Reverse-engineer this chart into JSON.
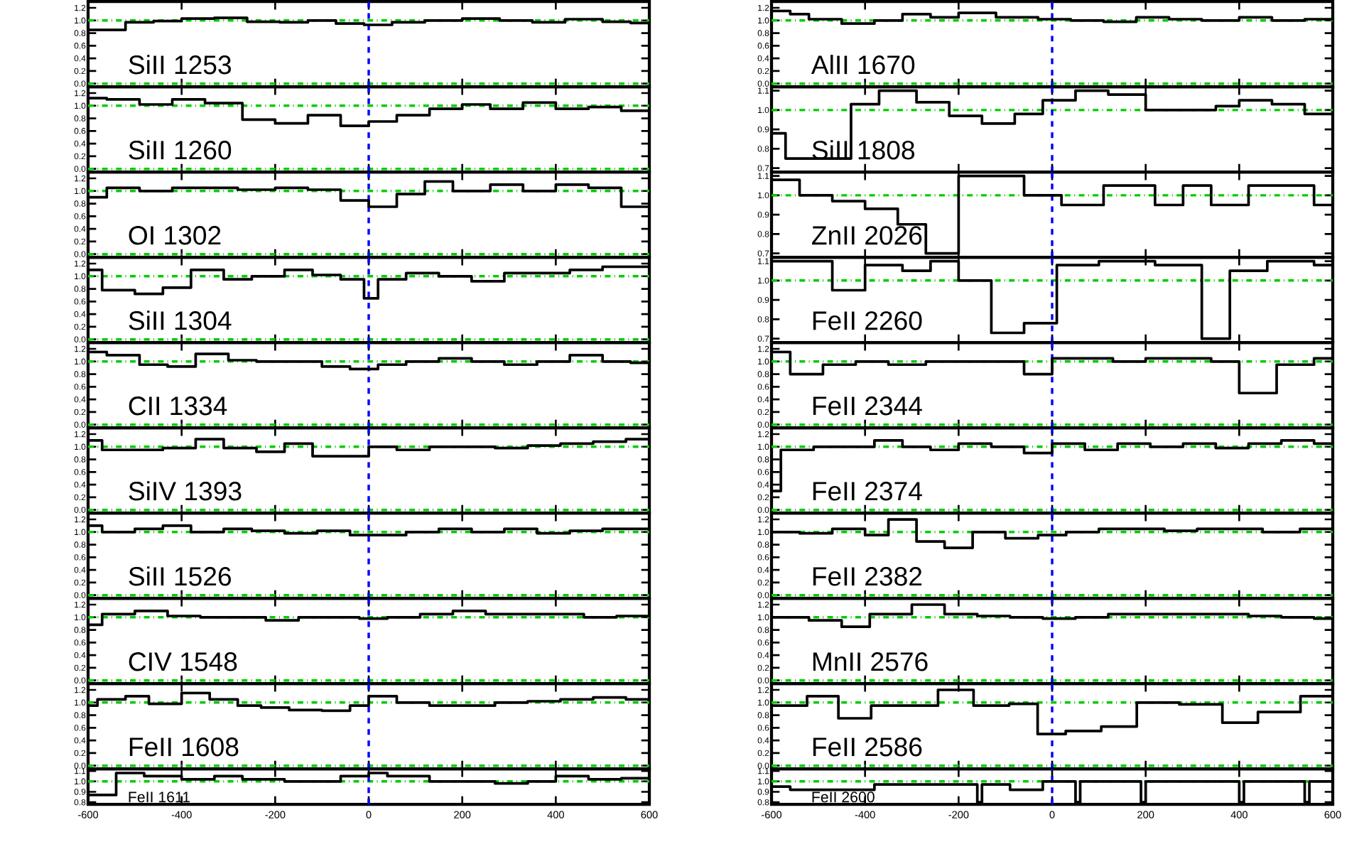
{
  "chart_data": [
    {
      "type": "step",
      "title": "SiII 1253",
      "color": "#000000",
      "x": [
        -600,
        -520,
        -460,
        -400,
        -330,
        -260,
        -190,
        -130,
        -70,
        -10,
        50,
        120,
        200,
        280,
        350,
        420,
        500,
        560,
        600
      ],
      "values": [
        0.85,
        0.97,
        0.99,
        1.03,
        1.04,
        0.98,
        0.97,
        1.0,
        0.95,
        0.93,
        0.97,
        1.0,
        1.03,
        1.0,
        0.97,
        1.02,
        0.98,
        0.96,
        0.96
      ],
      "xlim": [
        -600,
        600
      ],
      "ylim": [
        -0.05,
        1.3
      ],
      "yticks": [
        {
          "value": 0,
          "label": "0.0"
        },
        {
          "value": 0.2,
          "label": "0.2"
        },
        {
          "value": 0.4,
          "label": "0.4"
        },
        {
          "value": 0.6,
          "label": "0.6"
        },
        {
          "value": 0.8,
          "label": "0.8"
        },
        {
          "value": 1.0,
          "label": "1.0"
        },
        {
          "value": 1.2,
          "label": "1.2"
        }
      ],
      "xticks": [
        -600,
        -400,
        -200,
        0,
        200,
        400,
        600
      ],
      "tick_labels": "y",
      "ref_lines": [
        {
          "axis": "y",
          "value": 1,
          "color": "#00cc00",
          "line_style": "dashdot"
        },
        {
          "axis": "y",
          "value": 0,
          "color": "#00cc00",
          "line_style": "dashdot"
        },
        {
          "axis": "x",
          "value": 0,
          "color": "#0000ff",
          "line_style": "dashed"
        }
      ]
    },
    {
      "type": "step",
      "title": "SiII 1260",
      "color": "#000000",
      "x": [
        -600,
        -560,
        -490,
        -420,
        -350,
        -270,
        -200,
        -130,
        -60,
        0,
        60,
        130,
        200,
        260,
        330,
        400,
        470,
        540,
        600
      ],
      "values": [
        1.12,
        1.1,
        1.02,
        1.1,
        1.04,
        0.78,
        0.72,
        0.85,
        0.68,
        0.75,
        0.85,
        0.95,
        1.02,
        0.95,
        1.05,
        0.95,
        0.98,
        0.92,
        0.92
      ],
      "xlim": [
        -600,
        600
      ],
      "ylim": [
        -0.05,
        1.3
      ],
      "yticks": [
        {
          "value": 0,
          "label": "0.0"
        },
        {
          "value": 0.2,
          "label": "0.2"
        },
        {
          "value": 0.4,
          "label": "0.4"
        },
        {
          "value": 0.6,
          "label": "0.6"
        },
        {
          "value": 0.8,
          "label": "0.8"
        },
        {
          "value": 1.0,
          "label": "1.0"
        },
        {
          "value": 1.2,
          "label": "1.2"
        }
      ],
      "xticks": [
        -600,
        -400,
        -200,
        0,
        200,
        400,
        600
      ],
      "tick_labels": "y",
      "ref_lines": [
        {
          "axis": "y",
          "value": 1,
          "color": "#00cc00",
          "line_style": "dashdot"
        },
        {
          "axis": "y",
          "value": 0,
          "color": "#00cc00",
          "line_style": "dashdot"
        },
        {
          "axis": "x",
          "value": 0,
          "color": "#0000ff",
          "line_style": "dashed"
        }
      ]
    },
    {
      "type": "step",
      "title": "OI 1302",
      "color": "#000000",
      "x": [
        -600,
        -560,
        -490,
        -420,
        -350,
        -280,
        -200,
        -130,
        -60,
        0,
        60,
        120,
        180,
        260,
        330,
        400,
        470,
        540,
        600
      ],
      "values": [
        0.9,
        1.05,
        1.0,
        1.05,
        1.05,
        1.02,
        1.05,
        1.02,
        0.85,
        0.75,
        0.95,
        1.15,
        1.0,
        1.1,
        1.0,
        1.1,
        1.05,
        0.75,
        0.75
      ],
      "xlim": [
        -600,
        600
      ],
      "ylim": [
        -0.05,
        1.3
      ],
      "yticks": [
        {
          "value": 0,
          "label": "0.0"
        },
        {
          "value": 0.2,
          "label": "0.2"
        },
        {
          "value": 0.4,
          "label": "0.4"
        },
        {
          "value": 0.6,
          "label": "0.6"
        },
        {
          "value": 0.8,
          "label": "0.8"
        },
        {
          "value": 1.0,
          "label": "1.0"
        },
        {
          "value": 1.2,
          "label": "1.2"
        }
      ],
      "xticks": [
        -600,
        -400,
        -200,
        0,
        200,
        400,
        600
      ],
      "tick_labels": "y",
      "ref_lines": [
        {
          "axis": "y",
          "value": 1,
          "color": "#00cc00",
          "line_style": "dashdot"
        },
        {
          "axis": "y",
          "value": 0,
          "color": "#00cc00",
          "line_style": "dashdot"
        },
        {
          "axis": "x",
          "value": 0,
          "color": "#0000ff",
          "line_style": "dashed"
        }
      ]
    },
    {
      "type": "step",
      "title": "SiII 1304",
      "color": "#000000",
      "x": [
        -600,
        -570,
        -500,
        -440,
        -380,
        -310,
        -250,
        -180,
        -120,
        -60,
        -10,
        20,
        80,
        150,
        220,
        290,
        360,
        430,
        500,
        560,
        600
      ],
      "values": [
        1.1,
        0.78,
        0.72,
        0.82,
        1.1,
        0.95,
        1.0,
        1.1,
        1.02,
        0.95,
        0.65,
        0.95,
        1.05,
        1.0,
        0.92,
        1.05,
        1.05,
        1.1,
        1.15,
        1.15,
        1.15
      ],
      "xlim": [
        -600,
        600
      ],
      "ylim": [
        -0.05,
        1.3
      ],
      "yticks": [
        {
          "value": 0,
          "label": "0.0"
        },
        {
          "value": 0.2,
          "label": "0.2"
        },
        {
          "value": 0.4,
          "label": "0.4"
        },
        {
          "value": 0.6,
          "label": "0.6"
        },
        {
          "value": 0.8,
          "label": "0.8"
        },
        {
          "value": 1.0,
          "label": "1.0"
        },
        {
          "value": 1.2,
          "label": "1.2"
        }
      ],
      "xticks": [
        -600,
        -400,
        -200,
        0,
        200,
        400,
        600
      ],
      "tick_labels": "y",
      "ref_lines": [
        {
          "axis": "y",
          "value": 1,
          "color": "#00cc00",
          "line_style": "dashdot"
        },
        {
          "axis": "y",
          "value": 0,
          "color": "#00cc00",
          "line_style": "dashdot"
        },
        {
          "axis": "x",
          "value": 0,
          "color": "#0000ff",
          "line_style": "dashed"
        }
      ]
    },
    {
      "type": "step",
      "title": "CII 1334",
      "color": "#000000",
      "x": [
        -600,
        -560,
        -490,
        -430,
        -370,
        -300,
        -240,
        -160,
        -100,
        -40,
        20,
        80,
        150,
        220,
        290,
        360,
        430,
        500,
        560,
        600
      ],
      "values": [
        1.15,
        1.1,
        0.95,
        0.92,
        1.12,
        1.02,
        1.0,
        1.0,
        0.92,
        0.88,
        0.95,
        1.0,
        1.05,
        1.0,
        0.95,
        1.0,
        1.1,
        1.0,
        0.98,
        0.98
      ],
      "xlim": [
        -600,
        600
      ],
      "ylim": [
        -0.05,
        1.3
      ],
      "yticks": [
        {
          "value": 0,
          "label": "0.0"
        },
        {
          "value": 0.2,
          "label": "0.2"
        },
        {
          "value": 0.4,
          "label": "0.4"
        },
        {
          "value": 0.6,
          "label": "0.6"
        },
        {
          "value": 0.8,
          "label": "0.8"
        },
        {
          "value": 1.0,
          "label": "1.0"
        },
        {
          "value": 1.2,
          "label": "1.2"
        }
      ],
      "xticks": [
        -600,
        -400,
        -200,
        0,
        200,
        400,
        600
      ],
      "tick_labels": "y",
      "ref_lines": [
        {
          "axis": "y",
          "value": 1,
          "color": "#00cc00",
          "line_style": "dashdot"
        },
        {
          "axis": "y",
          "value": 0,
          "color": "#00cc00",
          "line_style": "dashdot"
        },
        {
          "axis": "x",
          "value": 0,
          "color": "#0000ff",
          "line_style": "dashed"
        }
      ]
    },
    {
      "type": "step",
      "title": "SiIV 1393",
      "color": "#000000",
      "x": [
        -600,
        -570,
        -500,
        -440,
        -370,
        -310,
        -240,
        -180,
        -120,
        -50,
        0,
        60,
        130,
        200,
        270,
        340,
        410,
        480,
        550,
        600
      ],
      "values": [
        1.1,
        0.95,
        0.95,
        0.98,
        1.12,
        0.98,
        0.92,
        1.05,
        0.85,
        0.85,
        1.0,
        0.95,
        1.0,
        1.0,
        0.98,
        1.02,
        1.05,
        1.08,
        1.12,
        1.12
      ],
      "xlim": [
        -600,
        600
      ],
      "ylim": [
        -0.05,
        1.3
      ],
      "yticks": [
        {
          "value": 0,
          "label": "0.0"
        },
        {
          "value": 0.2,
          "label": "0.2"
        },
        {
          "value": 0.4,
          "label": "0.4"
        },
        {
          "value": 0.6,
          "label": "0.6"
        },
        {
          "value": 0.8,
          "label": "0.8"
        },
        {
          "value": 1.0,
          "label": "1.0"
        },
        {
          "value": 1.2,
          "label": "1.2"
        }
      ],
      "xticks": [
        -600,
        -400,
        -200,
        0,
        200,
        400,
        600
      ],
      "tick_labels": "y",
      "ref_lines": [
        {
          "axis": "y",
          "value": 1,
          "color": "#00cc00",
          "line_style": "dashdot"
        },
        {
          "axis": "y",
          "value": 0,
          "color": "#00cc00",
          "line_style": "dashdot"
        },
        {
          "axis": "x",
          "value": 0,
          "color": "#0000ff",
          "line_style": "dashed"
        }
      ]
    },
    {
      "type": "step",
      "title": "SiII 1526",
      "color": "#000000",
      "x": [
        -600,
        -570,
        -500,
        -440,
        -380,
        -310,
        -250,
        -180,
        -110,
        -40,
        20,
        80,
        150,
        220,
        290,
        360,
        430,
        500,
        560,
        600
      ],
      "values": [
        1.1,
        1.0,
        1.05,
        1.1,
        1.0,
        1.05,
        1.02,
        0.98,
        1.02,
        0.95,
        0.95,
        1.0,
        1.05,
        1.0,
        1.05,
        0.98,
        1.02,
        1.05,
        1.05,
        1.05
      ],
      "xlim": [
        -600,
        600
      ],
      "ylim": [
        -0.05,
        1.3
      ],
      "yticks": [
        {
          "value": 0,
          "label": "0.0"
        },
        {
          "value": 0.2,
          "label": "0.2"
        },
        {
          "value": 0.4,
          "label": "0.4"
        },
        {
          "value": 0.6,
          "label": "0.6"
        },
        {
          "value": 0.8,
          "label": "0.8"
        },
        {
          "value": 1.0,
          "label": "1.0"
        },
        {
          "value": 1.2,
          "label": "1.2"
        }
      ],
      "xticks": [
        -600,
        -400,
        -200,
        0,
        200,
        400,
        600
      ],
      "tick_labels": "y",
      "ref_lines": [
        {
          "axis": "y",
          "value": 1,
          "color": "#00cc00",
          "line_style": "dashdot"
        },
        {
          "axis": "y",
          "value": 0,
          "color": "#00cc00",
          "line_style": "dashdot"
        },
        {
          "axis": "x",
          "value": 0,
          "color": "#0000ff",
          "line_style": "dashed"
        }
      ]
    },
    {
      "type": "step",
      "title": "CIV 1548",
      "color": "#000000",
      "x": [
        -600,
        -570,
        -500,
        -430,
        -360,
        -290,
        -220,
        -150,
        -80,
        -20,
        40,
        110,
        180,
        250,
        320,
        390,
        460,
        530,
        600
      ],
      "values": [
        0.88,
        1.05,
        1.1,
        1.02,
        1.0,
        1.0,
        0.95,
        1.0,
        1.0,
        0.98,
        1.0,
        1.05,
        1.1,
        1.05,
        1.05,
        1.05,
        1.0,
        1.02,
        1.02
      ],
      "xlim": [
        -600,
        600
      ],
      "ylim": [
        -0.05,
        1.3
      ],
      "yticks": [
        {
          "value": 0,
          "label": "0.0"
        },
        {
          "value": 0.2,
          "label": "0.2"
        },
        {
          "value": 0.4,
          "label": "0.4"
        },
        {
          "value": 0.6,
          "label": "0.6"
        },
        {
          "value": 0.8,
          "label": "0.8"
        },
        {
          "value": 1.0,
          "label": "1.0"
        },
        {
          "value": 1.2,
          "label": "1.2"
        }
      ],
      "xticks": [
        -600,
        -400,
        -200,
        0,
        200,
        400,
        600
      ],
      "tick_labels": "y",
      "ref_lines": [
        {
          "axis": "y",
          "value": 1,
          "color": "#00cc00",
          "line_style": "dashdot"
        },
        {
          "axis": "y",
          "value": 0,
          "color": "#00cc00",
          "line_style": "dashdot"
        },
        {
          "axis": "x",
          "value": 0,
          "color": "#0000ff",
          "line_style": "dashed"
        }
      ]
    },
    {
      "type": "step",
      "title": "FeII 1608",
      "color": "#000000",
      "x": [
        -600,
        -580,
        -520,
        -470,
        -400,
        -340,
        -280,
        -230,
        -170,
        -100,
        -40,
        0,
        60,
        130,
        200,
        270,
        340,
        410,
        480,
        550,
        600
      ],
      "values": [
        0.95,
        1.05,
        1.1,
        0.98,
        1.15,
        1.05,
        0.95,
        0.92,
        0.88,
        0.87,
        0.95,
        1.1,
        1.0,
        0.95,
        0.95,
        1.0,
        1.02,
        1.05,
        1.08,
        1.05,
        1.05
      ],
      "xlim": [
        -600,
        600
      ],
      "ylim": [
        -0.05,
        1.3
      ],
      "yticks": [
        {
          "value": 0,
          "label": "0.0"
        },
        {
          "value": 0.2,
          "label": "0.2"
        },
        {
          "value": 0.4,
          "label": "0.4"
        },
        {
          "value": 0.6,
          "label": "0.6"
        },
        {
          "value": 0.8,
          "label": "0.8"
        },
        {
          "value": 1.0,
          "label": "1.0"
        },
        {
          "value": 1.2,
          "label": "1.2"
        }
      ],
      "xticks": [
        -600,
        -400,
        -200,
        0,
        200,
        400,
        600
      ],
      "tick_labels": "y",
      "ref_lines": [
        {
          "axis": "y",
          "value": 1,
          "color": "#00cc00",
          "line_style": "dashdot"
        },
        {
          "axis": "y",
          "value": 0,
          "color": "#00cc00",
          "line_style": "dashdot"
        },
        {
          "axis": "x",
          "value": 0,
          "color": "#0000ff",
          "line_style": "dashed"
        }
      ]
    },
    {
      "type": "step",
      "title": "FeII 1611",
      "color": "#000000",
      "x": [
        -600,
        -540,
        -480,
        -400,
        -330,
        -270,
        -180,
        -60,
        0,
        40,
        130,
        200,
        270,
        340,
        400,
        470,
        540,
        600
      ],
      "values": [
        0.87,
        1.08,
        1.05,
        1.02,
        1.05,
        1.02,
        1.0,
        1.05,
        1.08,
        1.05,
        1.0,
        1.0,
        0.98,
        1.0,
        1.05,
        1.02,
        1.03,
        1.03
      ],
      "xlim": [
        -600,
        600
      ],
      "ylim": [
        0.78,
        1.12
      ],
      "yticks": [
        {
          "value": 0.8,
          "label": "0.8"
        },
        {
          "value": 0.9,
          "label": "0.9"
        },
        {
          "value": 1.0,
          "label": "1.0"
        },
        {
          "value": 1.1,
          "label": "1.1"
        }
      ],
      "xticks": [
        -600,
        -400,
        -200,
        0,
        200,
        400,
        600
      ],
      "ref_lines": [
        {
          "axis": "y",
          "value": 1,
          "color": "#00cc00",
          "line_style": "dashdot"
        },
        {
          "axis": "x",
          "value": 0,
          "color": "#0000ff",
          "line_style": "dashed"
        }
      ]
    },
    {
      "type": "step",
      "title": "AlII 1670",
      "color": "#000000",
      "x": [
        -600,
        -560,
        -520,
        -450,
        -380,
        -320,
        -260,
        -200,
        -120,
        -30,
        40,
        110,
        180,
        250,
        320,
        400,
        470,
        540,
        600
      ],
      "values": [
        1.15,
        1.1,
        1.02,
        0.95,
        1.0,
        1.1,
        1.05,
        1.12,
        1.05,
        1.02,
        1.0,
        0.98,
        1.05,
        1.02,
        1.0,
        1.05,
        1.0,
        1.02,
        1.02
      ],
      "xlim": [
        -600,
        600
      ],
      "ylim": [
        -0.05,
        1.3
      ],
      "yticks": [
        {
          "value": 0,
          "label": "0.0"
        },
        {
          "value": 0.2,
          "label": "0.2"
        },
        {
          "value": 0.4,
          "label": "0.4"
        },
        {
          "value": 0.6,
          "label": "0.6"
        },
        {
          "value": 0.8,
          "label": "0.8"
        },
        {
          "value": 1.0,
          "label": "1.0"
        },
        {
          "value": 1.2,
          "label": "1.2"
        }
      ],
      "xticks": [
        -600,
        -400,
        -200,
        0,
        200,
        400,
        600
      ],
      "tick_labels": "y",
      "ref_lines": [
        {
          "axis": "y",
          "value": 1,
          "color": "#00cc00",
          "line_style": "dashdot"
        },
        {
          "axis": "y",
          "value": 0,
          "color": "#00cc00",
          "line_style": "dashdot"
        },
        {
          "axis": "x",
          "value": 0,
          "color": "#0000ff",
          "line_style": "dashed"
        }
      ]
    },
    {
      "type": "step",
      "title": "SiII 1808",
      "color": "#000000",
      "x": [
        -600,
        -570,
        -500,
        -430,
        -370,
        -290,
        -220,
        -150,
        -80,
        -20,
        50,
        120,
        200,
        280,
        350,
        400,
        470,
        540,
        600
      ],
      "values": [
        0.88,
        0.75,
        0.75,
        1.03,
        1.1,
        1.04,
        0.97,
        0.93,
        0.98,
        1.05,
        1.1,
        1.08,
        1.0,
        1.0,
        1.02,
        1.05,
        1.03,
        0.98,
        0.98
      ],
      "xlim": [
        -600,
        600
      ],
      "ylim": [
        0.68,
        1.12
      ],
      "yticks": [
        {
          "value": 0.7,
          "label": "0.7"
        },
        {
          "value": 0.8,
          "label": "0.8"
        },
        {
          "value": 0.9,
          "label": "0.9"
        },
        {
          "value": 1.0,
          "label": "1.0"
        },
        {
          "value": 1.1,
          "label": "1.1"
        }
      ],
      "xticks": [
        -600,
        -400,
        -200,
        0,
        200,
        400,
        600
      ],
      "tick_labels": "y",
      "ref_lines": [
        {
          "axis": "y",
          "value": 1,
          "color": "#00cc00",
          "line_style": "dashdot"
        },
        {
          "axis": "x",
          "value": 0,
          "color": "#0000ff",
          "line_style": "dashed"
        }
      ]
    },
    {
      "type": "step",
      "title": "ZnII 2026",
      "color": "#000000",
      "x": [
        -600,
        -540,
        -470,
        -400,
        -330,
        -270,
        -200,
        -60,
        20,
        110,
        220,
        280,
        340,
        420,
        560,
        600
      ],
      "values": [
        1.08,
        1.0,
        0.97,
        0.93,
        0.85,
        0.7,
        1.1,
        1.0,
        0.95,
        1.05,
        0.95,
        1.05,
        0.95,
        1.05,
        0.95,
        0.95
      ],
      "xlim": [
        -600,
        600
      ],
      "ylim": [
        0.68,
        1.12
      ],
      "yticks": [
        {
          "value": 0.7,
          "label": "0.7"
        },
        {
          "value": 0.8,
          "label": "0.8"
        },
        {
          "value": 0.9,
          "label": "0.9"
        },
        {
          "value": 1.0,
          "label": "1.0"
        },
        {
          "value": 1.1,
          "label": "1.1"
        }
      ],
      "xticks": [
        -600,
        -400,
        -200,
        0,
        200,
        400,
        600
      ],
      "tick_labels": "y",
      "ref_lines": [
        {
          "axis": "y",
          "value": 1,
          "color": "#00cc00",
          "line_style": "dashdot"
        },
        {
          "axis": "x",
          "value": 0,
          "color": "#0000ff",
          "line_style": "dashed"
        }
      ]
    },
    {
      "type": "step",
      "title": "FeII 2260",
      "color": "#000000",
      "x": [
        -600,
        -470,
        -400,
        -320,
        -260,
        -200,
        -130,
        -60,
        10,
        100,
        220,
        320,
        380,
        460,
        560,
        600
      ],
      "values": [
        1.1,
        0.95,
        1.08,
        1.05,
        1.1,
        1.0,
        0.73,
        0.78,
        1.08,
        1.1,
        1.08,
        0.7,
        1.05,
        1.1,
        1.08,
        1.08
      ],
      "xlim": [
        -600,
        600
      ],
      "ylim": [
        0.68,
        1.12
      ],
      "yticks": [
        {
          "value": 0.7,
          "label": "0.7"
        },
        {
          "value": 0.8,
          "label": "0.8"
        },
        {
          "value": 0.9,
          "label": "0.9"
        },
        {
          "value": 1.0,
          "label": "1.0"
        },
        {
          "value": 1.1,
          "label": "1.1"
        }
      ],
      "xticks": [
        -600,
        -400,
        -200,
        0,
        200,
        400,
        600
      ],
      "tick_labels": "y",
      "ref_lines": [
        {
          "axis": "y",
          "value": 1,
          "color": "#00cc00",
          "line_style": "dashdot"
        },
        {
          "axis": "x",
          "value": 0,
          "color": "#0000ff",
          "line_style": "dashed"
        }
      ]
    },
    {
      "type": "step",
      "title": "FeII 2344",
      "color": "#000000",
      "x": [
        -600,
        -560,
        -490,
        -420,
        -350,
        -270,
        -200,
        -130,
        -60,
        0,
        60,
        130,
        200,
        270,
        340,
        400,
        480,
        560,
        600
      ],
      "values": [
        1.15,
        0.8,
        0.95,
        1.0,
        0.95,
        1.0,
        1.0,
        1.0,
        0.8,
        1.05,
        1.05,
        1.0,
        1.05,
        1.05,
        1.0,
        0.5,
        0.95,
        1.05,
        1.05
      ],
      "xlim": [
        -600,
        600
      ],
      "ylim": [
        -0.05,
        1.3
      ],
      "yticks": [
        {
          "value": 0,
          "label": "0.0"
        },
        {
          "value": 0.2,
          "label": "0.2"
        },
        {
          "value": 0.4,
          "label": "0.4"
        },
        {
          "value": 0.6,
          "label": "0.6"
        },
        {
          "value": 0.8,
          "label": "0.8"
        },
        {
          "value": 1.0,
          "label": "1.0"
        },
        {
          "value": 1.2,
          "label": "1.2"
        }
      ],
      "xticks": [
        -600,
        -400,
        -200,
        0,
        200,
        400,
        600
      ],
      "tick_labels": "y",
      "ref_lines": [
        {
          "axis": "y",
          "value": 1,
          "color": "#00cc00",
          "line_style": "dashdot"
        },
        {
          "axis": "y",
          "value": 0,
          "color": "#00cc00",
          "line_style": "dashdot"
        },
        {
          "axis": "x",
          "value": 0,
          "color": "#0000ff",
          "line_style": "dashed"
        }
      ]
    },
    {
      "type": "step",
      "title": "FeII 2374",
      "color": "#000000",
      "x": [
        -600,
        -580,
        -510,
        -440,
        -380,
        -320,
        -260,
        -200,
        -130,
        -60,
        0,
        70,
        140,
        210,
        280,
        350,
        420,
        490,
        560,
        600
      ],
      "values": [
        0.3,
        0.95,
        1.0,
        1.0,
        1.1,
        1.0,
        0.95,
        1.05,
        1.0,
        0.9,
        1.05,
        0.95,
        1.05,
        1.0,
        1.05,
        0.98,
        1.05,
        1.1,
        1.05,
        1.05
      ],
      "xlim": [
        -600,
        600
      ],
      "ylim": [
        -0.05,
        1.3
      ],
      "yticks": [
        {
          "value": 0,
          "label": "0.0"
        },
        {
          "value": 0.2,
          "label": "0.2"
        },
        {
          "value": 0.4,
          "label": "0.4"
        },
        {
          "value": 0.6,
          "label": "0.6"
        },
        {
          "value": 0.8,
          "label": "0.8"
        },
        {
          "value": 1.0,
          "label": "1.0"
        },
        {
          "value": 1.2,
          "label": "1.2"
        }
      ],
      "xticks": [
        -600,
        -400,
        -200,
        0,
        200,
        400,
        600
      ],
      "tick_labels": "y",
      "ref_lines": [
        {
          "axis": "y",
          "value": 1,
          "color": "#00cc00",
          "line_style": "dashdot"
        },
        {
          "axis": "y",
          "value": 0,
          "color": "#00cc00",
          "line_style": "dashdot"
        },
        {
          "axis": "x",
          "value": 0,
          "color": "#0000ff",
          "line_style": "dashed"
        }
      ]
    },
    {
      "type": "step",
      "title": "FeII 2382",
      "color": "#000000",
      "x": [
        -600,
        -540,
        -470,
        -400,
        -350,
        -290,
        -230,
        -170,
        -100,
        -30,
        30,
        100,
        170,
        240,
        310,
        380,
        450,
        530,
        600
      ],
      "values": [
        1.0,
        0.98,
        1.05,
        0.95,
        1.2,
        0.85,
        0.75,
        1.0,
        0.9,
        0.95,
        1.0,
        1.05,
        1.05,
        1.02,
        1.05,
        1.05,
        1.0,
        1.05,
        1.05
      ],
      "xlim": [
        -600,
        600
      ],
      "ylim": [
        -0.05,
        1.3
      ],
      "yticks": [
        {
          "value": 0,
          "label": "0.0"
        },
        {
          "value": 0.2,
          "label": "0.2"
        },
        {
          "value": 0.4,
          "label": "0.4"
        },
        {
          "value": 0.6,
          "label": "0.6"
        },
        {
          "value": 0.8,
          "label": "0.8"
        },
        {
          "value": 1.0,
          "label": "1.0"
        },
        {
          "value": 1.2,
          "label": "1.2"
        }
      ],
      "xticks": [
        -600,
        -400,
        -200,
        0,
        200,
        400,
        600
      ],
      "tick_labels": "y",
      "ref_lines": [
        {
          "axis": "y",
          "value": 1,
          "color": "#00cc00",
          "line_style": "dashdot"
        },
        {
          "axis": "y",
          "value": 0,
          "color": "#00cc00",
          "line_style": "dashdot"
        },
        {
          "axis": "x",
          "value": 0,
          "color": "#0000ff",
          "line_style": "dashed"
        }
      ]
    },
    {
      "type": "step",
      "title": "MnII 2576",
      "color": "#000000",
      "x": [
        -600,
        -520,
        -450,
        -390,
        -300,
        -230,
        -160,
        -90,
        -20,
        50,
        120,
        200,
        270,
        340,
        420,
        490,
        560,
        600
      ],
      "values": [
        1.0,
        0.95,
        0.85,
        1.05,
        1.2,
        1.05,
        1.02,
        1.0,
        0.98,
        1.0,
        1.05,
        1.05,
        1.05,
        1.05,
        1.02,
        1.0,
        0.98,
        0.98
      ],
      "xlim": [
        -600,
        600
      ],
      "ylim": [
        -0.05,
        1.3
      ],
      "yticks": [
        {
          "value": 0,
          "label": "0.0"
        },
        {
          "value": 0.2,
          "label": "0.2"
        },
        {
          "value": 0.4,
          "label": "0.4"
        },
        {
          "value": 0.6,
          "label": "0.6"
        },
        {
          "value": 0.8,
          "label": "0.8"
        },
        {
          "value": 1.0,
          "label": "1.0"
        },
        {
          "value": 1.2,
          "label": "1.2"
        }
      ],
      "xticks": [
        -600,
        -400,
        -200,
        0,
        200,
        400,
        600
      ],
      "tick_labels": "y",
      "ref_lines": [
        {
          "axis": "y",
          "value": 1,
          "color": "#00cc00",
          "line_style": "dashdot"
        },
        {
          "axis": "y",
          "value": 0,
          "color": "#00cc00",
          "line_style": "dashdot"
        },
        {
          "axis": "x",
          "value": 0,
          "color": "#0000ff",
          "line_style": "dashed"
        }
      ]
    },
    {
      "type": "step",
      "title": "FeII 2586",
      "color": "#000000",
      "x": [
        -600,
        -524,
        -457,
        -387,
        -320,
        -244,
        -168,
        -92,
        -31,
        29,
        105,
        181,
        272,
        364,
        440,
        531,
        600
      ],
      "values": [
        0.95,
        1.1,
        0.75,
        0.95,
        0.95,
        1.2,
        0.95,
        0.98,
        0.5,
        0.55,
        0.62,
        1.0,
        0.97,
        0.68,
        0.85,
        1.1,
        1.1
      ],
      "xlim": [
        -600,
        600
      ],
      "ylim": [
        -0.05,
        1.3
      ],
      "yticks": [
        {
          "value": 0,
          "label": "0.0"
        },
        {
          "value": 0.2,
          "label": "0.2"
        },
        {
          "value": 0.4,
          "label": "0.4"
        },
        {
          "value": 0.6,
          "label": "0.6"
        },
        {
          "value": 0.8,
          "label": "0.8"
        },
        {
          "value": 1.0,
          "label": "1.0"
        },
        {
          "value": 1.2,
          "label": "1.2"
        }
      ],
      "xticks": [
        -600,
        -400,
        -200,
        0,
        200,
        400,
        600
      ],
      "tick_labels": "y",
      "ref_lines": [
        {
          "axis": "y",
          "value": 1,
          "color": "#00cc00",
          "line_style": "dashdot"
        },
        {
          "axis": "y",
          "value": 0,
          "color": "#00cc00",
          "line_style": "dashdot"
        },
        {
          "axis": "x",
          "value": 0,
          "color": "#0000ff",
          "line_style": "dashed"
        }
      ]
    },
    {
      "type": "step",
      "title": "FeII 2600",
      "color": "#000000",
      "x": [
        -600,
        -560,
        -380,
        -160,
        -150,
        -90,
        -20,
        50,
        60,
        190,
        200,
        400,
        410,
        540,
        550,
        600
      ],
      "values": [
        0.95,
        0.92,
        0.97,
        0.8,
        0.97,
        0.92,
        1.0,
        0.8,
        1.0,
        0.8,
        1.0,
        0.8,
        1.0,
        0.8,
        1.0,
        1.0
      ],
      "xlim": [
        -600,
        600
      ],
      "ylim": [
        0.78,
        1.12
      ],
      "yticks": [
        {
          "value": 0.8,
          "label": "0.8"
        },
        {
          "value": 0.9,
          "label": "0.9"
        },
        {
          "value": 1.0,
          "label": "1.0"
        },
        {
          "value": 1.1,
          "label": "1.1"
        }
      ],
      "xticks": [
        -600,
        -400,
        -200,
        0,
        200,
        400,
        600
      ],
      "ref_lines": [
        {
          "axis": "y",
          "value": 1,
          "color": "#00cc00",
          "line_style": "dashdot"
        },
        {
          "axis": "x",
          "value": 0,
          "color": "#0000ff",
          "line_style": "dashed"
        }
      ]
    }
  ]
}
